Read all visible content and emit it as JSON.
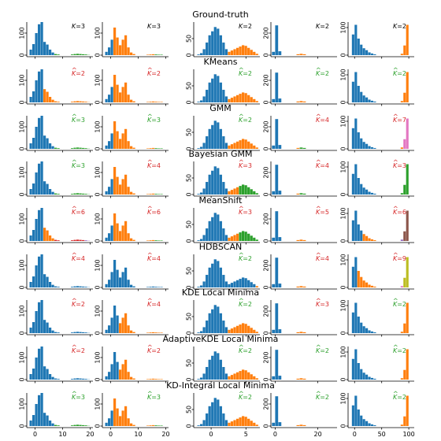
{
  "figure": {
    "row_titles": [
      "Ground-truth",
      "KMeans",
      "GMM",
      "Bayesian GMM",
      "MeanShift",
      "HDBSCAN",
      "KDE Local Minima",
      "AdaptiveKDE Local Minima",
      "KD-Integral Local Minima"
    ],
    "colors": {
      "blue": "#1f77b4",
      "orange": "#ff7f0e",
      "green": "#2ca02c",
      "red": "#d62728",
      "purple": "#9467bd",
      "brown": "#8c564b",
      "pink": "#e377c2",
      "olive": "#bcbd22",
      "label_green": "#2ca02c",
      "label_red": "#d62728",
      "label_black": "#000000"
    }
  },
  "chart_data": {
    "type": "bar",
    "columns": [
      {
        "xlim": [
          -3,
          21
        ],
        "ylim": [
          0,
          150
        ],
        "xticks": [
          "0",
          "10",
          "20"
        ],
        "xtick_values": [
          0,
          10,
          20
        ],
        "yticks": [
          "0",
          "100"
        ],
        "ytick_values": [
          0,
          100
        ],
        "bins": [
          [
            -2,
            -1,
            25
          ],
          [
            -1,
            0,
            50
          ],
          [
            0,
            1,
            100
          ],
          [
            1,
            2,
            140
          ],
          [
            2,
            3,
            150
          ],
          [
            3,
            4,
            60
          ],
          [
            4,
            5,
            48
          ],
          [
            5,
            6,
            25
          ],
          [
            6,
            7,
            12
          ],
          [
            7,
            8,
            5
          ],
          [
            8,
            9,
            3
          ],
          [
            13,
            14,
            3
          ],
          [
            14,
            15,
            5
          ],
          [
            15,
            16,
            6
          ],
          [
            16,
            17,
            5
          ],
          [
            17,
            18,
            4
          ],
          [
            18,
            19,
            3
          ],
          [
            19,
            20,
            1
          ]
        ]
      },
      {
        "xlim": [
          -3,
          21
        ],
        "ylim": [
          0,
          150
        ],
        "xticks": [
          "0",
          "10",
          "20"
        ],
        "xtick_values": [
          0,
          10,
          20
        ],
        "yticks": [
          "0",
          "100"
        ],
        "ytick_values": [
          0,
          100
        ],
        "bins": [
          [
            -2,
            -1,
            15
          ],
          [
            -1,
            0,
            35
          ],
          [
            0,
            1,
            70
          ],
          [
            1,
            2,
            125
          ],
          [
            2,
            3,
            80
          ],
          [
            3,
            4,
            45
          ],
          [
            4,
            5,
            70
          ],
          [
            5,
            6,
            90
          ],
          [
            6,
            7,
            35
          ],
          [
            7,
            8,
            12
          ],
          [
            8,
            9,
            5
          ],
          [
            13,
            14,
            2
          ],
          [
            14,
            15,
            3
          ],
          [
            15,
            16,
            4
          ],
          [
            16,
            17,
            3
          ],
          [
            17,
            18,
            2
          ],
          [
            18,
            19,
            2
          ]
        ]
      },
      {
        "xlim": [
          -2.5,
          7
        ],
        "ylim": [
          0,
          100
        ],
        "xticks": [
          "0",
          "5"
        ],
        "xtick_values": [
          0,
          5
        ],
        "yticks": [
          "0",
          "50"
        ],
        "ytick_values": [
          0,
          50
        ],
        "bins": [
          [
            -2,
            -1.6,
            2
          ],
          [
            -1.6,
            -1.2,
            6
          ],
          [
            -1.2,
            -0.8,
            18
          ],
          [
            -0.8,
            -0.4,
            38
          ],
          [
            -0.4,
            0,
            60
          ],
          [
            0,
            0.4,
            72
          ],
          [
            0.4,
            0.8,
            85
          ],
          [
            0.8,
            1.2,
            80
          ],
          [
            1.2,
            1.6,
            60
          ],
          [
            1.6,
            2,
            38
          ],
          [
            2,
            2.4,
            18
          ],
          [
            2.4,
            2.8,
            10
          ],
          [
            2.8,
            3.2,
            14
          ],
          [
            3.2,
            3.6,
            18
          ],
          [
            3.6,
            4,
            22
          ],
          [
            4,
            4.4,
            26
          ],
          [
            4.4,
            4.8,
            30
          ],
          [
            4.8,
            5.2,
            28
          ],
          [
            5.2,
            5.6,
            22
          ],
          [
            5.6,
            6,
            16
          ],
          [
            6,
            6.4,
            10
          ],
          [
            6.4,
            6.8,
            4
          ]
        ]
      },
      {
        "xlim": [
          -2,
          29
        ],
        "ylim": [
          0,
          300
        ],
        "xticks": [
          "0",
          "20"
        ],
        "xtick_values": [
          0,
          20
        ],
        "yticks": [
          "0",
          "200"
        ],
        "ytick_values": [
          0,
          200
        ],
        "bins": [
          [
            -1.5,
            0,
            30
          ],
          [
            0,
            1.5,
            270
          ],
          [
            1.5,
            3,
            35
          ],
          [
            10,
            11.5,
            8
          ],
          [
            11.5,
            13,
            12
          ],
          [
            13,
            14.5,
            8
          ]
        ]
      },
      {
        "xlim": [
          -12,
          110
        ],
        "ylim": [
          0,
          120
        ],
        "xticks": [
          "0",
          "50",
          "100"
        ],
        "xtick_values": [
          0,
          50,
          100
        ],
        "yticks": [
          "0",
          "100"
        ],
        "ytick_values": [
          0,
          100
        ],
        "bins": [
          [
            -5,
            0,
            75
          ],
          [
            0,
            5,
            110
          ],
          [
            5,
            10,
            60
          ],
          [
            10,
            15,
            38
          ],
          [
            15,
            20,
            25
          ],
          [
            20,
            25,
            18
          ],
          [
            25,
            30,
            10
          ],
          [
            30,
            35,
            6
          ],
          [
            35,
            40,
            3
          ],
          [
            85,
            90,
            5
          ],
          [
            90,
            95,
            35
          ],
          [
            95,
            100,
            110
          ]
        ]
      }
    ],
    "rows": [
      {
        "title": "Ground-truth",
        "panels": [
          {
            "k": "3",
            "hat": false,
            "label_color": "label_black",
            "seg": [
              9,
              9,
              0
            ]
          },
          {
            "k": "3",
            "hat": false,
            "label_color": "label_black",
            "seg": [
              3,
              14,
              0
            ]
          },
          {
            "k": "2",
            "hat": false,
            "label_color": "label_black",
            "seg": [
              11,
              22,
              22
            ]
          },
          {
            "k": "2",
            "hat": false,
            "label_color": "label_black",
            "seg": [
              3,
              6,
              6
            ]
          },
          {
            "k": "2",
            "hat": false,
            "label_color": "label_black",
            "seg": [
              9,
              12,
              12
            ]
          }
        ]
      },
      {
        "title": "KMeans",
        "panels": [
          {
            "k": "2",
            "hat": true,
            "label_color": "label_red",
            "seg": [
              5,
              18,
              18
            ]
          },
          {
            "k": "2",
            "hat": true,
            "label_color": "label_red",
            "seg": [
              3,
              17,
              17
            ]
          },
          {
            "k": "2",
            "hat": true,
            "label_color": "label_green",
            "seg": [
              11,
              22,
              22
            ]
          },
          {
            "k": "2",
            "hat": true,
            "label_color": "label_green",
            "seg": [
              3,
              6,
              6
            ]
          },
          {
            "k": "2",
            "hat": true,
            "label_color": "label_green",
            "seg": [
              9,
              12,
              12
            ]
          }
        ]
      },
      {
        "title": "GMM",
        "panels": [
          {
            "k": "3",
            "hat": true,
            "label_color": "label_green",
            "seg": [
              9,
              9,
              0
            ]
          },
          {
            "k": "3",
            "hat": true,
            "label_color": "label_green",
            "seg": [
              3,
              14,
              0
            ]
          },
          {
            "k": "2",
            "hat": true,
            "label_color": "label_green",
            "seg": [
              11,
              22,
              22
            ]
          },
          {
            "k": "4",
            "hat": true,
            "label_color": "label_red",
            "seg": [
              3,
              4,
              6
            ]
          },
          {
            "k": "7",
            "hat": true,
            "label_color": "label_red",
            "seg": [
              9,
              10,
              12
            ]
          }
        ]
      },
      {
        "title": "Bayesian GMM",
        "panels": [
          {
            "k": "3",
            "hat": true,
            "label_color": "label_green",
            "seg": [
              9,
              9,
              0
            ]
          },
          {
            "k": "4",
            "hat": true,
            "label_color": "label_red",
            "seg": [
              3,
              14,
              0
            ]
          },
          {
            "k": "3",
            "hat": true,
            "label_color": "label_red",
            "seg": [
              11,
              15,
              0
            ]
          },
          {
            "k": "4",
            "hat": true,
            "label_color": "label_red",
            "seg": [
              3,
              4,
              6
            ]
          },
          {
            "k": "3",
            "hat": true,
            "label_color": "label_red",
            "seg": [
              9,
              9,
              10
            ]
          }
        ]
      },
      {
        "title": "MeanShift",
        "panels": [
          {
            "k": "6",
            "hat": true,
            "label_color": "label_red",
            "seg": [
              5,
              9,
              0
            ]
          },
          {
            "k": "6",
            "hat": true,
            "label_color": "label_red",
            "seg": [
              3,
              14,
              0
            ]
          },
          {
            "k": "3",
            "hat": true,
            "label_color": "label_red",
            "seg": [
              11,
              15,
              0
            ]
          },
          {
            "k": "5",
            "hat": true,
            "label_color": "label_red",
            "seg": [
              3,
              6,
              6
            ]
          },
          {
            "k": "6",
            "hat": true,
            "label_color": "label_red",
            "seg": [
              4,
              9,
              10
            ]
          }
        ]
      },
      {
        "title": "HDBSCAN",
        "panels": [
          {
            "k": "4",
            "hat": true,
            "label_color": "label_red",
            "seg": [
              18,
              18,
              18
            ]
          },
          {
            "k": "4",
            "hat": true,
            "label_color": "label_red",
            "seg": [
              17,
              17,
              17
            ]
          },
          {
            "k": "2",
            "hat": true,
            "label_color": "label_green",
            "seg": [
              21,
              22,
              22
            ]
          },
          {
            "k": "4",
            "hat": true,
            "label_color": "label_red",
            "seg": [
              3,
              6,
              6
            ]
          },
          {
            "k": "9",
            "hat": true,
            "label_color": "label_red",
            "seg": [
              2,
              9,
              10
            ]
          }
        ]
      },
      {
        "title": "KDE Local Minima",
        "panels": [
          {
            "k": "2",
            "hat": true,
            "label_color": "label_red",
            "seg": [
              18,
              18,
              18
            ]
          },
          {
            "k": "4",
            "hat": true,
            "label_color": "label_red",
            "seg": [
              5,
              17,
              17
            ]
          },
          {
            "k": "2",
            "hat": true,
            "label_color": "label_green",
            "seg": [
              11,
              22,
              22
            ]
          },
          {
            "k": "3",
            "hat": true,
            "label_color": "label_red",
            "seg": [
              3,
              6,
              6
            ]
          },
          {
            "k": "2",
            "hat": true,
            "label_color": "label_green",
            "seg": [
              9,
              12,
              12
            ]
          }
        ]
      },
      {
        "title": "AdaptiveKDE Local Minima",
        "panels": [
          {
            "k": "2",
            "hat": true,
            "label_color": "label_red",
            "seg": [
              18,
              18,
              18
            ]
          },
          {
            "k": "2",
            "hat": true,
            "label_color": "label_red",
            "seg": [
              5,
              17,
              17
            ]
          },
          {
            "k": "2",
            "hat": true,
            "label_color": "label_green",
            "seg": [
              11,
              22,
              22
            ]
          },
          {
            "k": "2",
            "hat": true,
            "label_color": "label_green",
            "seg": [
              3,
              6,
              6
            ]
          },
          {
            "k": "2",
            "hat": true,
            "label_color": "label_green",
            "seg": [
              9,
              12,
              12
            ]
          }
        ]
      },
      {
        "title": "KD-Integral Local Minima",
        "panels": [
          {
            "k": "3",
            "hat": true,
            "label_color": "label_green",
            "seg": [
              9,
              9,
              0
            ]
          },
          {
            "k": "3",
            "hat": true,
            "label_color": "label_green",
            "seg": [
              3,
              14,
              0
            ]
          },
          {
            "k": "2",
            "hat": true,
            "label_color": "label_green",
            "seg": [
              11,
              22,
              22
            ]
          },
          {
            "k": "2",
            "hat": true,
            "label_color": "label_green",
            "seg": [
              3,
              6,
              6
            ]
          },
          {
            "k": "2",
            "hat": true,
            "label_color": "label_green",
            "seg": [
              9,
              12,
              12
            ]
          }
        ]
      }
    ]
  }
}
